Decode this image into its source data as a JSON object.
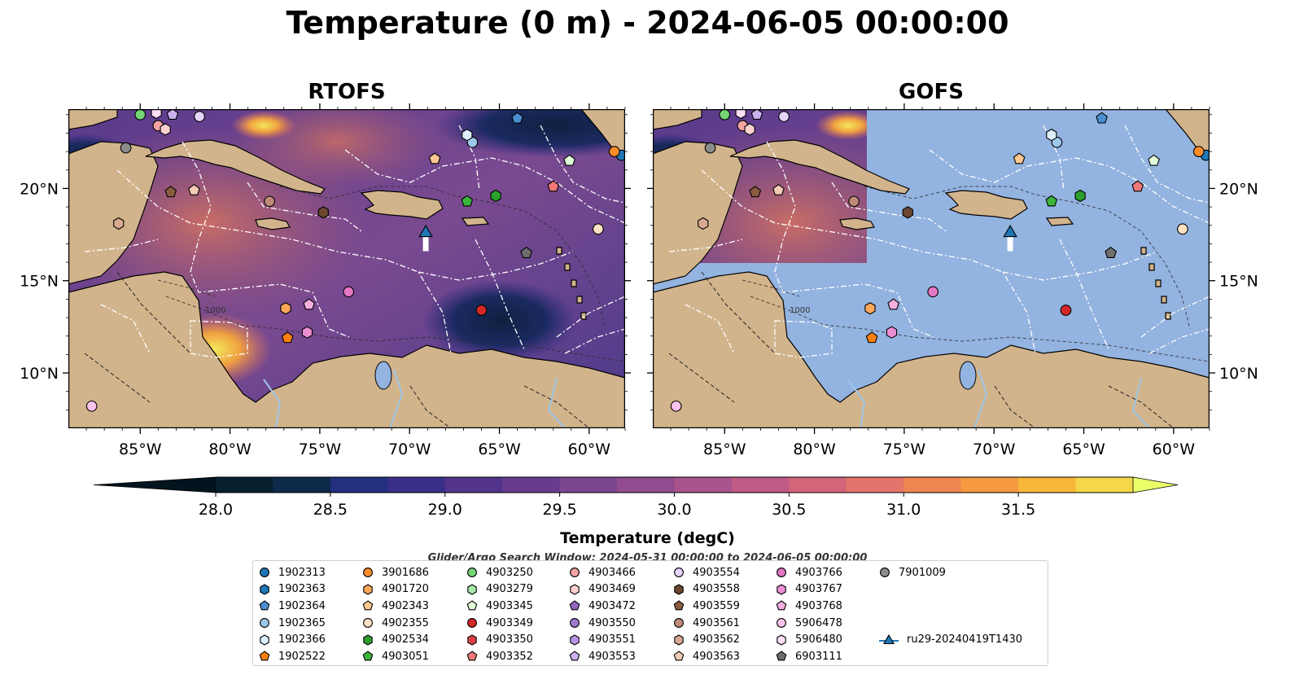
{
  "figure": {
    "title": "Temperature (0 m) - 2024-06-05 00:00:00",
    "panels": [
      {
        "title": "RTOFS",
        "layer": "full"
      },
      {
        "title": "GOFS",
        "layer": "partial"
      }
    ],
    "lon_range": [
      -89,
      -58
    ],
    "lat_range": [
      7,
      24.3
    ],
    "x_tick_labels": [
      "85°W",
      "80°W",
      "75°W",
      "70°W",
      "65°W",
      "60°W"
    ],
    "y_tick_labels": [
      "10°N",
      "15°N",
      "20°N"
    ],
    "contour_label": "1000",
    "colors": {
      "land": "#d2b48c",
      "ocean_gofs": "#93b3e0",
      "eez": "#ffffff",
      "rivers": "#9ec5e8"
    }
  },
  "colorbar": {
    "label": "Temperature (degC)",
    "tick_labels": [
      "28.0",
      "28.5",
      "29.0",
      "29.5",
      "30.0",
      "30.5",
      "31.0",
      "31.5"
    ],
    "range": [
      28.0,
      31.5
    ],
    "levels": 16,
    "extend": "both",
    "colormap": "thermal"
  },
  "legend": {
    "note": "Glider/Argo Search Window: 2024-05-31 00:00:00 to 2024-06-05 00:00:00",
    "entries": [
      {
        "label": "1902313",
        "color": "#1f77b4",
        "marker": "circle"
      },
      {
        "label": "1902363",
        "color": "#1f77b4",
        "marker": "hexagon"
      },
      {
        "label": "1902364",
        "color": "#4a90d0",
        "marker": "pentagon"
      },
      {
        "label": "1902365",
        "color": "#9cc8ea",
        "marker": "circle"
      },
      {
        "label": "1902366",
        "color": "#dceefa",
        "marker": "hexagon"
      },
      {
        "label": "1902522",
        "color": "#ff7f0e",
        "marker": "pentagon"
      },
      {
        "label": "3901686",
        "color": "#ff8c2a",
        "marker": "circle"
      },
      {
        "label": "4901720",
        "color": "#ffa85a",
        "marker": "hexagon"
      },
      {
        "label": "4902343",
        "color": "#ffc890",
        "marker": "pentagon"
      },
      {
        "label": "4902355",
        "color": "#ffe2c4",
        "marker": "circle"
      },
      {
        "label": "4902534",
        "color": "#2ca02c",
        "marker": "hexagon"
      },
      {
        "label": "4903051",
        "color": "#3cb43c",
        "marker": "pentagon"
      },
      {
        "label": "4903250",
        "color": "#74d674",
        "marker": "circle"
      },
      {
        "label": "4903279",
        "color": "#a8e8a8",
        "marker": "hexagon"
      },
      {
        "label": "4903345",
        "color": "#e0ffd8",
        "marker": "pentagon"
      },
      {
        "label": "4903349",
        "color": "#d62728",
        "marker": "circle"
      },
      {
        "label": "4903350",
        "color": "#e0404a",
        "marker": "hexagon"
      },
      {
        "label": "4903352",
        "color": "#f07878",
        "marker": "pentagon"
      },
      {
        "label": "4903466",
        "color": "#f5a3a3",
        "marker": "circle"
      },
      {
        "label": "4903469",
        "color": "#ffd0d0",
        "marker": "hexagon"
      },
      {
        "label": "4903472",
        "color": "#9467bd",
        "marker": "pentagon"
      },
      {
        "label": "4903550",
        "color": "#a07ad0",
        "marker": "circle"
      },
      {
        "label": "4903551",
        "color": "#b894e0",
        "marker": "hexagon"
      },
      {
        "label": "4903553",
        "color": "#ccb0ee",
        "marker": "pentagon"
      },
      {
        "label": "4903554",
        "color": "#e6d4fa",
        "marker": "circle"
      },
      {
        "label": "4903558",
        "color": "#6b4630",
        "marker": "hexagon"
      },
      {
        "label": "4903559",
        "color": "#8c5c40",
        "marker": "pentagon"
      },
      {
        "label": "4903561",
        "color": "#c08a78",
        "marker": "circle"
      },
      {
        "label": "4903562",
        "color": "#d9a890",
        "marker": "hexagon"
      },
      {
        "label": "4903563",
        "color": "#f2ccb4",
        "marker": "pentagon"
      },
      {
        "label": "4903766",
        "color": "#e377c2",
        "marker": "circle"
      },
      {
        "label": "4903767",
        "color": "#ec8ed2",
        "marker": "hexagon"
      },
      {
        "label": "4903768",
        "color": "#f5aee0",
        "marker": "pentagon"
      },
      {
        "label": "5906478",
        "color": "#f8c4ec",
        "marker": "circle"
      },
      {
        "label": "5906480",
        "color": "#fde0f6",
        "marker": "hexagon"
      },
      {
        "label": "6903111",
        "color": "#6e6e6e",
        "marker": "pentagon"
      },
      {
        "label": "7901009",
        "color": "#8c8c8c",
        "marker": "circle"
      },
      {
        "label": "ru29-20240419T1430",
        "color": "#1f77b4",
        "marker": "triangle-line"
      }
    ]
  },
  "floats": [
    {
      "id": "1902313",
      "lon": -58.2,
      "lat": 21.8
    },
    {
      "id": "1902364",
      "lon": -64.0,
      "lat": 23.8
    },
    {
      "id": "1902365",
      "lon": -66.5,
      "lat": 22.5
    },
    {
      "id": "1902366",
      "lon": -66.8,
      "lat": 22.9
    },
    {
      "id": "3901686",
      "lon": -58.6,
      "lat": 22.0
    },
    {
      "id": "4902343",
      "lon": -68.6,
      "lat": 21.6
    },
    {
      "id": "4902355",
      "lon": -59.5,
      "lat": 17.8
    },
    {
      "id": "4902534",
      "lon": -65.2,
      "lat": 19.6
    },
    {
      "id": "4903051",
      "lon": -66.8,
      "lat": 19.3
    },
    {
      "id": "4903345",
      "lon": -61.1,
      "lat": 21.5
    },
    {
      "id": "4903349",
      "lon": -66.0,
      "lat": 13.4
    },
    {
      "id": "4903352",
      "lon": -62.0,
      "lat": 20.1
    },
    {
      "id": "1902522",
      "lon": -76.8,
      "lat": 11.9
    },
    {
      "id": "4901720",
      "lon": -76.9,
      "lat": 13.5
    },
    {
      "id": "4903767",
      "lon": -75.7,
      "lat": 12.2
    },
    {
      "id": "4903768",
      "lon": -75.6,
      "lat": 13.7
    },
    {
      "id": "4903766",
      "lon": -73.4,
      "lat": 14.4
    },
    {
      "id": "4903558",
      "lon": -74.8,
      "lat": 18.7
    },
    {
      "id": "4903561",
      "lon": -77.8,
      "lat": 19.3
    },
    {
      "id": "4903559",
      "lon": -83.3,
      "lat": 19.8
    },
    {
      "id": "4903563",
      "lon": -82.0,
      "lat": 19.9
    },
    {
      "id": "4903562",
      "lon": -86.2,
      "lat": 18.1
    },
    {
      "id": "7901009",
      "lon": -85.8,
      "lat": 22.2
    },
    {
      "id": "4903250",
      "lon": -85.0,
      "lat": 24.0
    },
    {
      "id": "4903466",
      "lon": -84.0,
      "lat": 23.4
    },
    {
      "id": "4903469",
      "lon": -83.6,
      "lat": 23.2
    },
    {
      "id": "5906480",
      "lon": -84.1,
      "lat": 24.1
    },
    {
      "id": "4903553",
      "lon": -83.2,
      "lat": 24.0
    },
    {
      "id": "4903554",
      "lon": -81.7,
      "lat": 23.9
    },
    {
      "id": "5906478",
      "lon": -87.7,
      "lat": 8.2
    },
    {
      "id": "6903111",
      "lon": -63.5,
      "lat": 16.5
    }
  ],
  "glider": {
    "id": "ru29-20240419T1430",
    "lon": -69.1,
    "lat": 17.5,
    "track_end_lat": 16.6
  }
}
